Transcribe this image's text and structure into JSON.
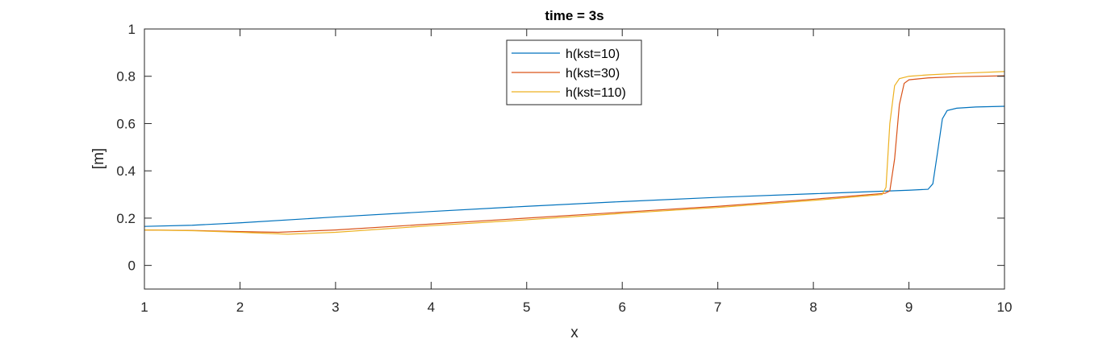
{
  "chart_data": {
    "type": "line",
    "title": "time = 3s",
    "xlabel": "x",
    "ylabel": "[m]",
    "xlim": [
      1,
      10
    ],
    "ylim": [
      -0.1,
      1
    ],
    "xticks": [
      1,
      2,
      3,
      4,
      5,
      6,
      7,
      8,
      9,
      10
    ],
    "yticks": [
      0,
      0.2,
      0.4,
      0.6,
      0.8,
      1
    ],
    "ytick_labels": [
      "0",
      "0.2",
      "0.4",
      "0.6",
      "0.8",
      "1"
    ],
    "grid": false,
    "legend_position": "top-center",
    "series": [
      {
        "name": "h(kst=10)",
        "color": "#0072BD",
        "x": [
          1,
          1.5,
          2,
          3,
          4,
          5,
          6,
          7,
          8,
          9,
          9.2,
          9.25,
          9.3,
          9.35,
          9.4,
          9.5,
          9.7,
          10
        ],
        "y": [
          0.165,
          0.17,
          0.18,
          0.205,
          0.228,
          0.25,
          0.27,
          0.288,
          0.303,
          0.318,
          0.322,
          0.345,
          0.48,
          0.62,
          0.655,
          0.665,
          0.67,
          0.673
        ]
      },
      {
        "name": "h(kst=30)",
        "color": "#D95319",
        "x": [
          1,
          1.5,
          2,
          2.4,
          3,
          4,
          5,
          6,
          7,
          8,
          8.75,
          8.8,
          8.85,
          8.9,
          8.95,
          9,
          9.2,
          9.5,
          10
        ],
        "y": [
          0.15,
          0.148,
          0.143,
          0.14,
          0.15,
          0.175,
          0.2,
          0.225,
          0.25,
          0.28,
          0.305,
          0.315,
          0.45,
          0.68,
          0.77,
          0.785,
          0.793,
          0.798,
          0.802
        ]
      },
      {
        "name": "h(kst=110)",
        "color": "#EDB120",
        "x": [
          1,
          1.5,
          2,
          2.5,
          3,
          4,
          5,
          6,
          7,
          8,
          8.72,
          8.76,
          8.8,
          8.85,
          8.9,
          9,
          9.2,
          9.5,
          10
        ],
        "y": [
          0.15,
          0.147,
          0.14,
          0.132,
          0.14,
          0.168,
          0.193,
          0.22,
          0.245,
          0.275,
          0.3,
          0.33,
          0.6,
          0.76,
          0.79,
          0.8,
          0.806,
          0.812,
          0.82
        ]
      }
    ]
  }
}
